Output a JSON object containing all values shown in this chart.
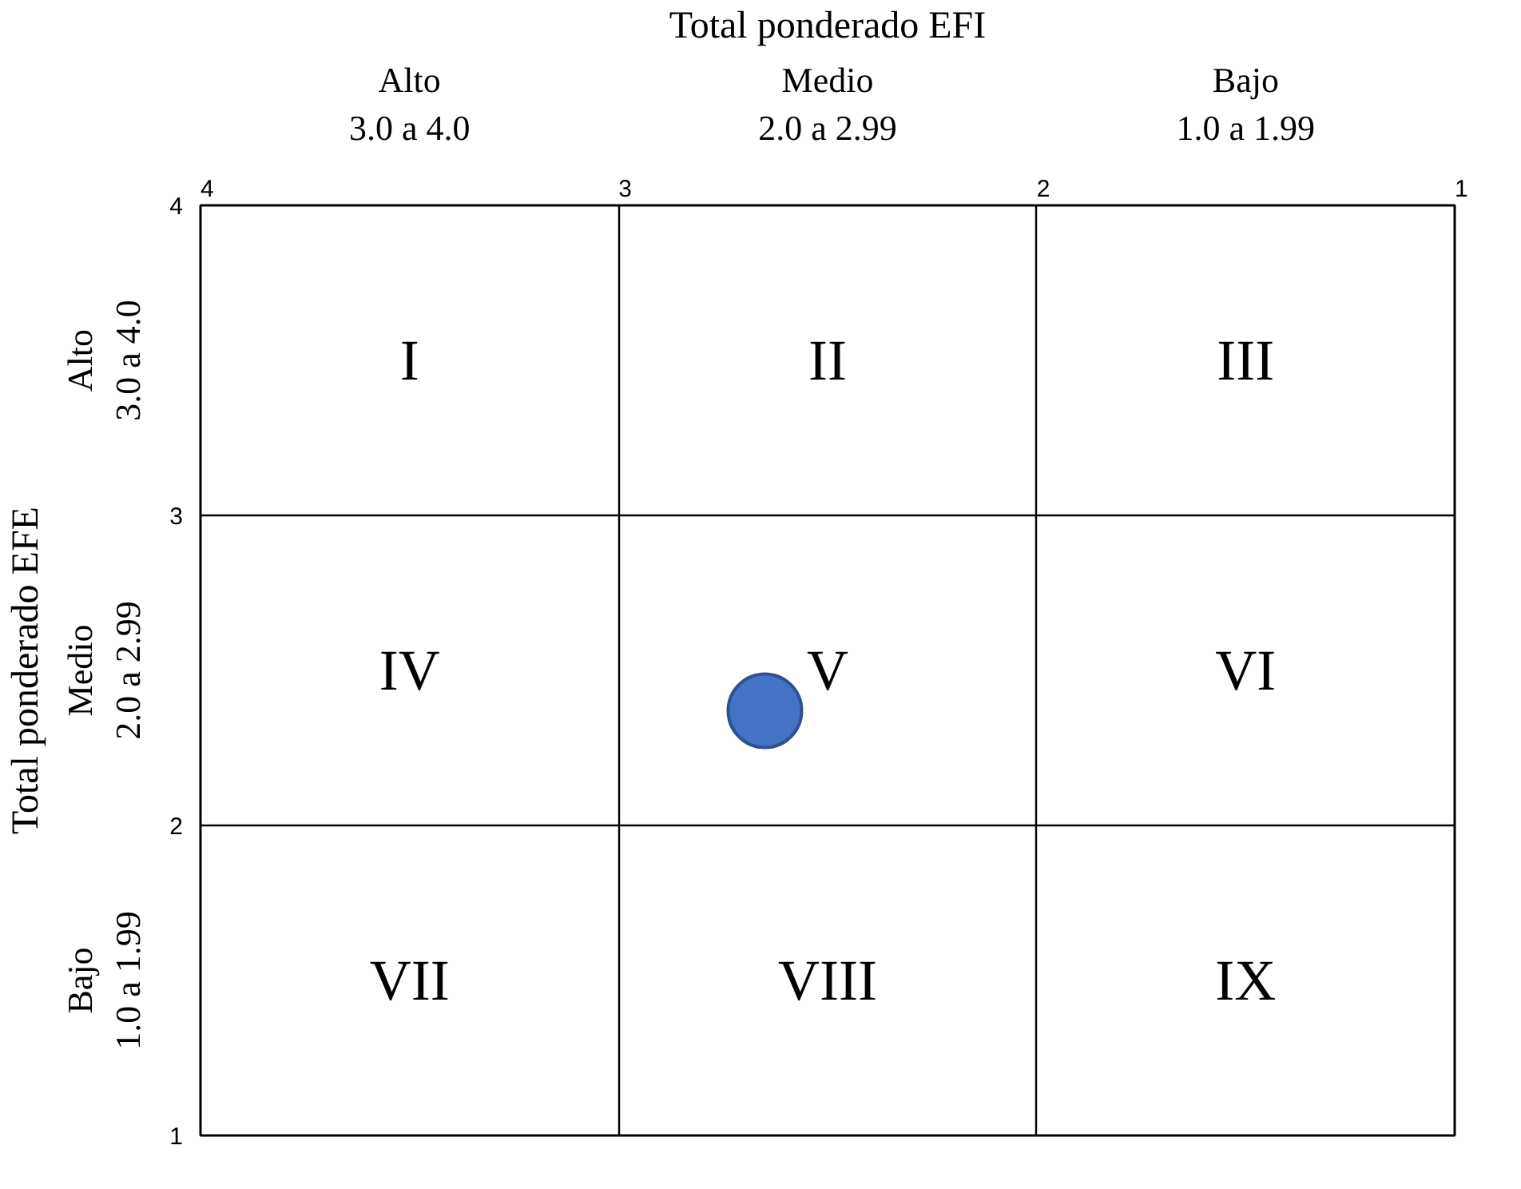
{
  "chart_data": {
    "type": "scatter",
    "xlabel": "Total ponderado EFI",
    "ylabel": "Total ponderado EFE",
    "x": [
      2.65
    ],
    "series": [
      {
        "color": "#4472c4",
        "values": [
          2.37
        ]
      }
    ],
    "marker": "circle",
    "xlim": [
      4,
      1
    ],
    "xticks": [
      4,
      3,
      2,
      1
    ],
    "ylim": [
      1,
      4
    ],
    "yticks": [
      1,
      2,
      3,
      4
    ],
    "grid": true,
    "annotations": [
      "I",
      "II",
      "III",
      "IV",
      "V",
      "VI",
      "VII",
      "VIII",
      "IX",
      "Alto\n3.0 a 4.0",
      "Medio\n2.0 a 2.99",
      "Bajo\n1.0 a 1.99",
      "Alto\n3.0 a 4.0",
      "Medio\n2.0 a 2.99",
      "Bajo\n1.0 a 1.99"
    ]
  }
}
